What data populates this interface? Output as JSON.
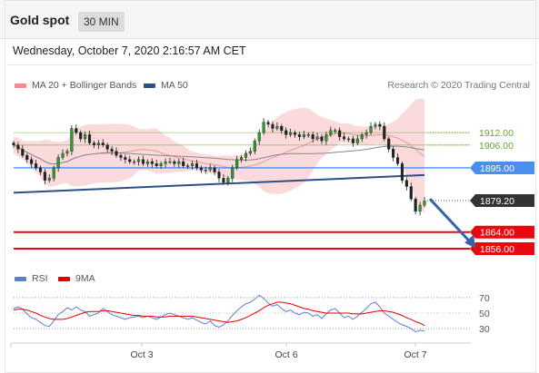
{
  "header": {
    "title": "Gold spot",
    "timeframe": "30 MIN"
  },
  "datetime": "Wednesday, October 7, 2020 2:16:57 AM CET",
  "legend": {
    "bollinger": "MA 20 + Bollinger Bands",
    "ma50": "MA 50",
    "rsi": "RSI",
    "ma9": "9MA"
  },
  "credit": "Research © 2020 Trading Central",
  "colors": {
    "bollinger": "#f08c8c",
    "ma50": "#2c4f85",
    "rsi": "#5b7fd6",
    "ma9": "#e00000",
    "green": "#6aa62c",
    "blue": "#4a8ef0",
    "red": "#e8090f",
    "dark": "#333333"
  },
  "chart_data": [
    {
      "type": "candlestick",
      "x_labels": [
        "Oct 3",
        "Oct 6",
        "Oct 7"
      ],
      "ylim": [
        1849,
        1930
      ],
      "levels": [
        {
          "value": 1912.0,
          "label": "1912.00",
          "kind": "resistance"
        },
        {
          "value": 1906.0,
          "label": "1906.00",
          "kind": "resistance"
        },
        {
          "value": 1895.0,
          "label": "1895.00",
          "kind": "pivot"
        },
        {
          "value": 1879.2,
          "label": "1879.20",
          "kind": "last-price"
        },
        {
          "value": 1864.0,
          "label": "1864.00",
          "kind": "target"
        },
        {
          "value": 1856.0,
          "label": "1856.00",
          "kind": "target"
        }
      ],
      "close": [
        1906,
        1904,
        1901,
        1899,
        1897,
        1895,
        1893,
        1889,
        1890,
        1895,
        1900,
        1902,
        1903,
        1914,
        1912,
        1909,
        1911,
        1907,
        1906,
        1907,
        1906,
        1904,
        1903,
        1901,
        1900,
        1899,
        1898,
        1898,
        1899,
        1897,
        1898,
        1897,
        1896,
        1897,
        1898,
        1898,
        1897,
        1898,
        1896,
        1896,
        1897,
        1895,
        1894,
        1894,
        1895,
        1893,
        1890,
        1888,
        1890,
        1895,
        1899,
        1900,
        1902,
        1903,
        1908,
        1912,
        1917,
        1916,
        1914,
        1915,
        1913,
        1911,
        1912,
        1911,
        1910,
        1911,
        1911,
        1909,
        1910,
        1908,
        1911,
        1913,
        1913,
        1910,
        1909,
        1909,
        1907,
        1909,
        1911,
        1912,
        1915,
        1916,
        1915,
        1909,
        1904,
        1900,
        1897,
        1889,
        1886,
        1880,
        1874,
        1877,
        1879
      ],
      "trendline": {
        "from": [
          0,
          1883
        ],
        "to": [
          92,
          1891.5
        ]
      },
      "projection": {
        "from": [
          92,
          1880
        ],
        "to": [
          102,
          1858
        ]
      }
    },
    {
      "type": "line",
      "title": "RSI",
      "ylim": [
        15,
        85
      ],
      "y_ticks": [
        "70",
        "50",
        "30"
      ],
      "series": [
        {
          "name": "RSI",
          "values": [
            56,
            58,
            55,
            49,
            44,
            42,
            38,
            34,
            33,
            40,
            48,
            52,
            57,
            54,
            58,
            54,
            52,
            46,
            48,
            50,
            56,
            52,
            48,
            46,
            44,
            42,
            44,
            45,
            46,
            44,
            46,
            44,
            42,
            45,
            48,
            50,
            48,
            46,
            44,
            42,
            44,
            41,
            38,
            36,
            40,
            34,
            32,
            35,
            40,
            47,
            53,
            58,
            62,
            64,
            68,
            73,
            69,
            63,
            59,
            61,
            56,
            52,
            54,
            50,
            48,
            51,
            50,
            46,
            48,
            43,
            49,
            54,
            56,
            50,
            44,
            46,
            42,
            46,
            51,
            56,
            62,
            64,
            58,
            50,
            46,
            42,
            38,
            35,
            33,
            30,
            26,
            28,
            27
          ]
        },
        {
          "name": "9MA",
          "values": [
            54,
            55,
            55,
            54,
            52,
            50,
            47,
            45,
            43,
            42,
            42,
            42,
            43,
            45,
            47,
            49,
            51,
            52,
            52,
            52,
            53,
            53,
            52,
            51,
            50,
            49,
            48,
            47,
            47,
            46,
            46,
            46,
            45,
            45,
            45,
            46,
            46,
            46,
            46,
            46,
            46,
            45,
            44,
            43,
            42,
            41,
            40,
            39,
            38,
            39,
            40,
            42,
            44,
            47,
            50,
            53,
            57,
            60,
            62,
            64,
            64,
            63,
            62,
            60,
            58,
            56,
            55,
            53,
            52,
            51,
            50,
            50,
            50,
            50,
            50,
            50,
            49,
            49,
            49,
            50,
            51,
            52,
            53,
            53,
            52,
            51,
            49,
            47,
            44,
            42,
            39,
            37,
            34
          ]
        }
      ]
    }
  ]
}
